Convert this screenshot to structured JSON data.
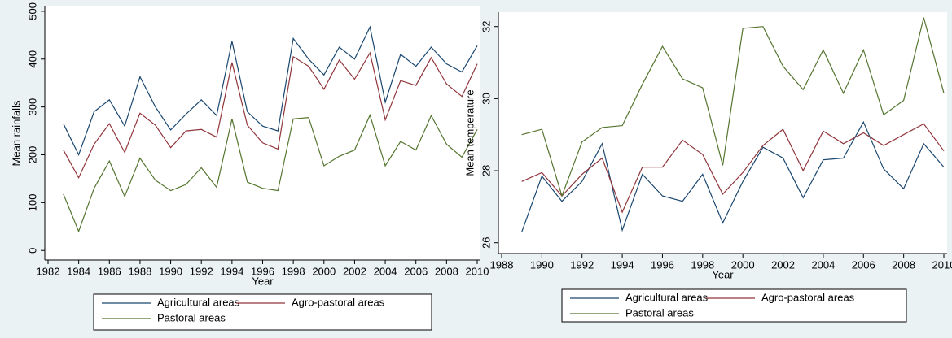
{
  "chart_data": [
    {
      "type": "line",
      "x_label": "Year",
      "y_label": "Mean rainfalls",
      "x": [
        1983,
        1984,
        1985,
        1986,
        1987,
        1988,
        1989,
        1990,
        1991,
        1992,
        1993,
        1994,
        1995,
        1996,
        1997,
        1998,
        1999,
        2000,
        2001,
        2002,
        2003,
        2004,
        2005,
        2006,
        2007,
        2008,
        2009,
        2010
      ],
      "series": [
        {
          "name": "Agricultural areas",
          "color": "#1a476f",
          "values": [
            265,
            200,
            290,
            315,
            260,
            363,
            300,
            252,
            285,
            315,
            282,
            437,
            290,
            260,
            250,
            443,
            400,
            367,
            425,
            400,
            467,
            310,
            410,
            385,
            425,
            390,
            373,
            428
          ]
        },
        {
          "name": "Agro-pastoral areas",
          "color": "#90353b",
          "values": [
            210,
            152,
            222,
            265,
            205,
            287,
            262,
            215,
            250,
            253,
            237,
            393,
            262,
            225,
            212,
            405,
            385,
            337,
            398,
            358,
            413,
            273,
            355,
            345,
            403,
            348,
            322,
            390
          ]
        },
        {
          "name": "Pastoral areas",
          "color": "#55752f",
          "values": [
            118,
            40,
            130,
            187,
            113,
            193,
            147,
            125,
            138,
            173,
            132,
            275,
            143,
            130,
            125,
            275,
            278,
            177,
            197,
            210,
            283,
            177,
            228,
            210,
            282,
            222,
            195,
            253
          ]
        }
      ],
      "xlim": [
        1982,
        2010
      ],
      "ylim": [
        -20,
        510
      ],
      "xticks": [
        1982,
        1984,
        1986,
        1988,
        1990,
        1992,
        1994,
        1996,
        1998,
        2000,
        2002,
        2004,
        2006,
        2008,
        2010
      ],
      "yticks": [
        0,
        100,
        200,
        300,
        400,
        500
      ]
    },
    {
      "type": "line",
      "x_label": "Year",
      "y_label": "Mean temperature",
      "x": [
        1989,
        1990,
        1991,
        1992,
        1993,
        1994,
        1995,
        1996,
        1997,
        1998,
        1999,
        2000,
        2001,
        2002,
        2003,
        2004,
        2005,
        2006,
        2007,
        2008,
        2009,
        2010
      ],
      "series": [
        {
          "name": "Agricultural areas",
          "color": "#1a476f",
          "values": [
            26.3,
            27.85,
            27.15,
            27.7,
            28.75,
            26.35,
            27.9,
            27.3,
            27.15,
            27.9,
            26.55,
            27.7,
            28.65,
            28.35,
            27.25,
            28.3,
            28.35,
            29.35,
            28.05,
            27.5,
            28.75,
            28.1
          ]
        },
        {
          "name": "Agro-pastoral areas",
          "color": "#90353b",
          "values": [
            27.7,
            27.95,
            27.3,
            27.9,
            28.35,
            26.85,
            28.1,
            28.1,
            28.85,
            28.45,
            27.35,
            27.95,
            28.7,
            29.15,
            28.0,
            29.1,
            28.75,
            29.05,
            28.7,
            29.0,
            29.3,
            28.55
          ]
        },
        {
          "name": "Pastoral areas",
          "color": "#55752f",
          "values": [
            29.0,
            29.15,
            27.3,
            28.8,
            29.2,
            29.25,
            30.4,
            31.45,
            30.55,
            30.3,
            28.15,
            31.95,
            32.0,
            30.9,
            30.25,
            31.35,
            30.15,
            31.35,
            29.55,
            29.95,
            32.25,
            30.15
          ]
        }
      ],
      "xlim": [
        1988,
        2010
      ],
      "ylim": [
        25.7,
        32.4
      ],
      "xticks": [
        1988,
        1990,
        1992,
        1994,
        1996,
        1998,
        2000,
        2002,
        2004,
        2006,
        2008,
        2010
      ],
      "yticks": [
        26,
        28,
        30,
        32
      ]
    }
  ]
}
